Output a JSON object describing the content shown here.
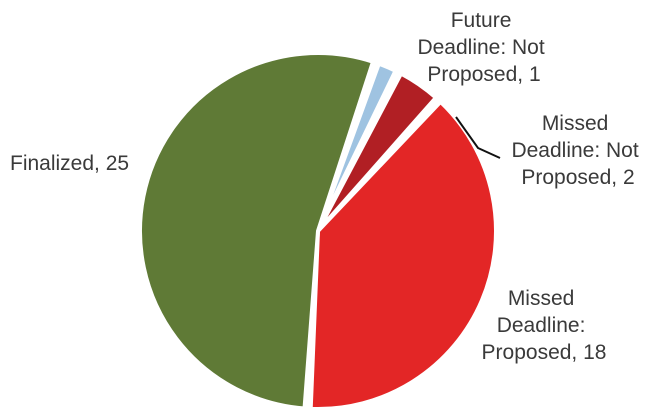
{
  "chart_data": {
    "type": "pie",
    "title": "",
    "slices": [
      {
        "label": "Finalized",
        "value": 25,
        "color": "#5f7a36",
        "label_lines": [
          "Finalized, 25"
        ]
      },
      {
        "label": "Future Deadline: Not Proposed",
        "value": 1,
        "color": "#9fc3e1",
        "label_lines": [
          "Future",
          "Deadline: Not",
          "Proposed, 1"
        ]
      },
      {
        "label": "Missed Deadline: Not Proposed",
        "value": 2,
        "color": "#b11f24",
        "label_lines": [
          "Missed",
          "Deadline: Not",
          "Proposed, 2"
        ]
      },
      {
        "label": "Missed Deadline: Proposed",
        "value": 18,
        "color": "#e32626",
        "label_lines": [
          "Missed",
          "Deadline:",
          "Proposed, 18"
        ]
      }
    ],
    "legend": "none"
  }
}
